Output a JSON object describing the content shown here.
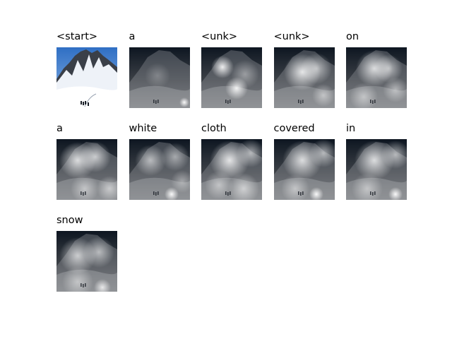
{
  "figure": {
    "panels": [
      {
        "word": "<start>",
        "image": "original-snowy-mountain-photo",
        "columns": 5
      },
      {
        "word": "a",
        "image": "attention-overlay"
      },
      {
        "word": "<unk>",
        "image": "attention-overlay"
      },
      {
        "word": "<unk>",
        "image": "attention-overlay"
      },
      {
        "word": "on",
        "image": "attention-overlay"
      },
      {
        "word": "a",
        "image": "attention-overlay"
      },
      {
        "word": "white",
        "image": "attention-overlay"
      },
      {
        "word": "cloth",
        "image": "attention-overlay"
      },
      {
        "word": "covered",
        "image": "attention-overlay"
      },
      {
        "word": "in",
        "image": "attention-overlay"
      },
      {
        "word": "snow",
        "image": "attention-overlay"
      }
    ],
    "colors": {
      "sky": "#2f6fc4",
      "snow": "#eef2f8",
      "rock": "#3a3f48",
      "dark": "#0d1621"
    }
  }
}
